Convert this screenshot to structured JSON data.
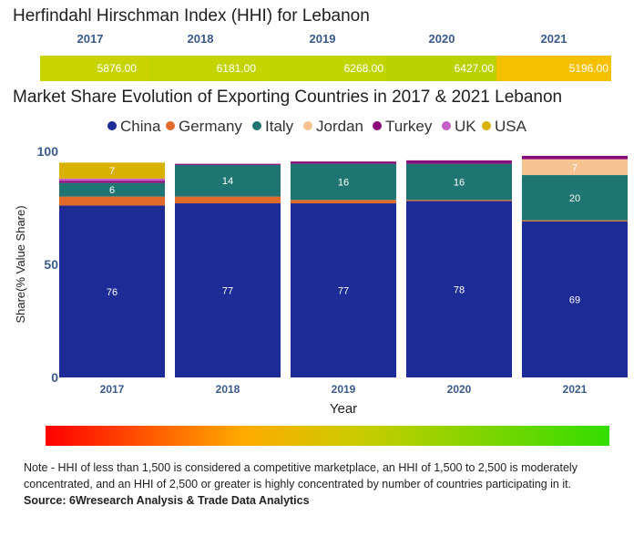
{
  "hhi": {
    "title": "Herfindahl Hirschman Index (HHI) for Lebanon",
    "years": [
      "2017",
      "2018",
      "2019",
      "2020",
      "2021"
    ],
    "values": [
      "5876.00",
      "6181.00",
      "6268.00",
      "6427.00",
      "5196.00"
    ],
    "colors": [
      "#c8d300",
      "#c3d400",
      "#c0d400",
      "#b9d200",
      "#f5c000"
    ]
  },
  "chart_title": "Market Share Evolution of Exporting Countries in 2017 & 2021 Lebanon",
  "chart_data": {
    "type": "bar",
    "stacked": true,
    "categories": [
      "2017",
      "2018",
      "2019",
      "2020",
      "2021"
    ],
    "series": [
      {
        "name": "China",
        "color": "#1c2b96",
        "values": [
          76,
          77,
          77,
          78,
          69
        ]
      },
      {
        "name": "Germany",
        "color": "#e06b2b",
        "values": [
          4,
          3,
          1.5,
          0.5,
          0.5
        ]
      },
      {
        "name": "Italy",
        "color": "#1e7571",
        "values": [
          6,
          14,
          16,
          16,
          20
        ]
      },
      {
        "name": "Jordan",
        "color": "#f5c491",
        "values": [
          0,
          0,
          0,
          0,
          7
        ]
      },
      {
        "name": "Turkey",
        "color": "#8b0a7a",
        "values": [
          1,
          0.5,
          1,
          1.5,
          1.5
        ]
      },
      {
        "name": "UK",
        "color": "#c45fc8",
        "values": [
          1,
          0,
          0,
          0,
          0
        ]
      },
      {
        "name": "USA",
        "color": "#d9b100",
        "values": [
          7,
          0,
          0,
          0,
          0
        ]
      }
    ],
    "data_labels": [
      {
        "series": "China",
        "values": [
          "76",
          "77",
          "77",
          "78",
          "69"
        ]
      },
      {
        "series": "Italy",
        "values": [
          "6",
          "14",
          "16",
          "16",
          "20"
        ]
      },
      {
        "series": "Jordan",
        "values": [
          "",
          "",
          "",
          "",
          "7"
        ]
      },
      {
        "series": "USA",
        "values": [
          "7",
          "",
          "",
          "",
          ""
        ]
      }
    ],
    "xlabel": "Year",
    "ylabel": "Share(% Value Share)",
    "ylim": [
      0,
      100
    ],
    "yticks": [
      "0",
      "50",
      "100"
    ],
    "legend_position": "top"
  },
  "gradient_colors": [
    "#ff0000",
    "#ffaa00",
    "#cccc00",
    "#33dd00"
  ],
  "note": "Note - HHI of less than 1,500 is considered a competitive marketplace, an HHI of 1,500 to 2,500 is moderately concentrated, and an HHI of 2,500 or greater is highly concentrated by number of countries participating in it.",
  "source": "Source: 6Wresearch Analysis & Trade Data Analytics"
}
